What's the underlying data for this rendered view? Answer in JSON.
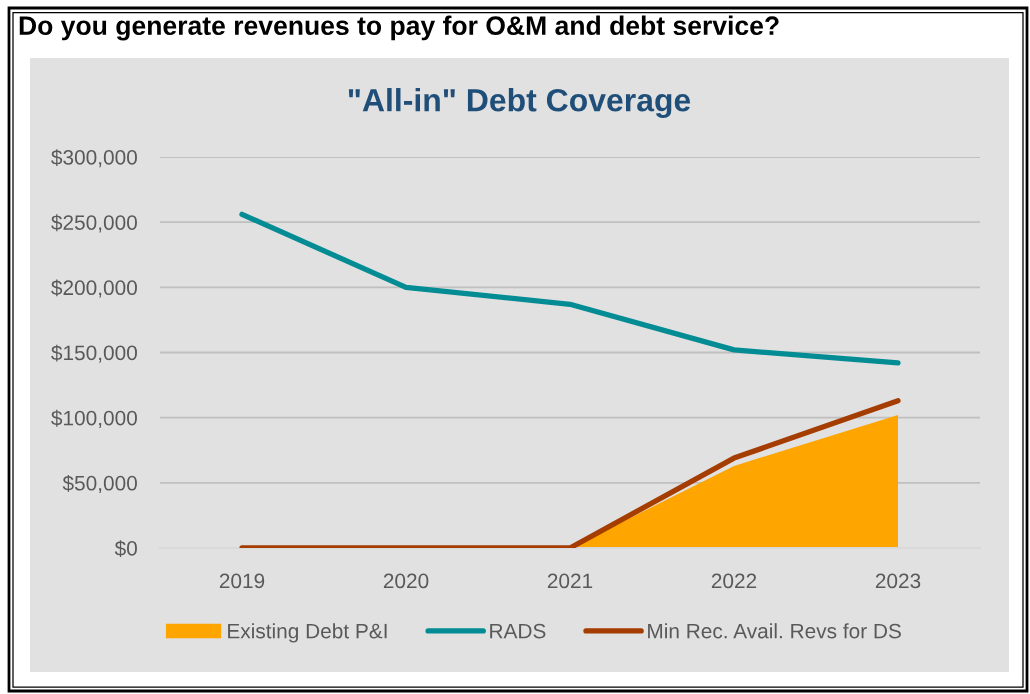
{
  "chart_data": {
    "type": "line",
    "title": "Do you generate revenues to pay for O&M and debt service?",
    "subtitle": "\"All-in\" Debt Coverage",
    "categories": [
      "2019",
      "2020",
      "2021",
      "2022",
      "2023"
    ],
    "series": [
      {
        "name": "Existing Debt P&I",
        "type": "area",
        "color": "#ffa500",
        "values": [
          0,
          0,
          0,
          63000,
          102000
        ]
      },
      {
        "name": "RADS",
        "type": "line",
        "color": "#038c93",
        "values": [
          256000,
          200000,
          187000,
          152000,
          142000
        ]
      },
      {
        "name": "Min Rec. Avail. Revs for DS",
        "type": "line",
        "color": "#a53c00",
        "values": [
          0,
          0,
          0,
          69000,
          113000
        ]
      }
    ],
    "ylim": [
      0,
      300000
    ],
    "yticks": [
      {
        "value": 0,
        "label": "$0"
      },
      {
        "value": 50000,
        "label": "$50,000"
      },
      {
        "value": 100000,
        "label": "$100,000"
      },
      {
        "value": 150000,
        "label": "$150,000"
      },
      {
        "value": 200000,
        "label": "$200,000"
      },
      {
        "value": 250000,
        "label": "$250,000"
      },
      {
        "value": 300000,
        "label": "$300,000"
      }
    ],
    "grid": "y",
    "legend": "bottom"
  }
}
